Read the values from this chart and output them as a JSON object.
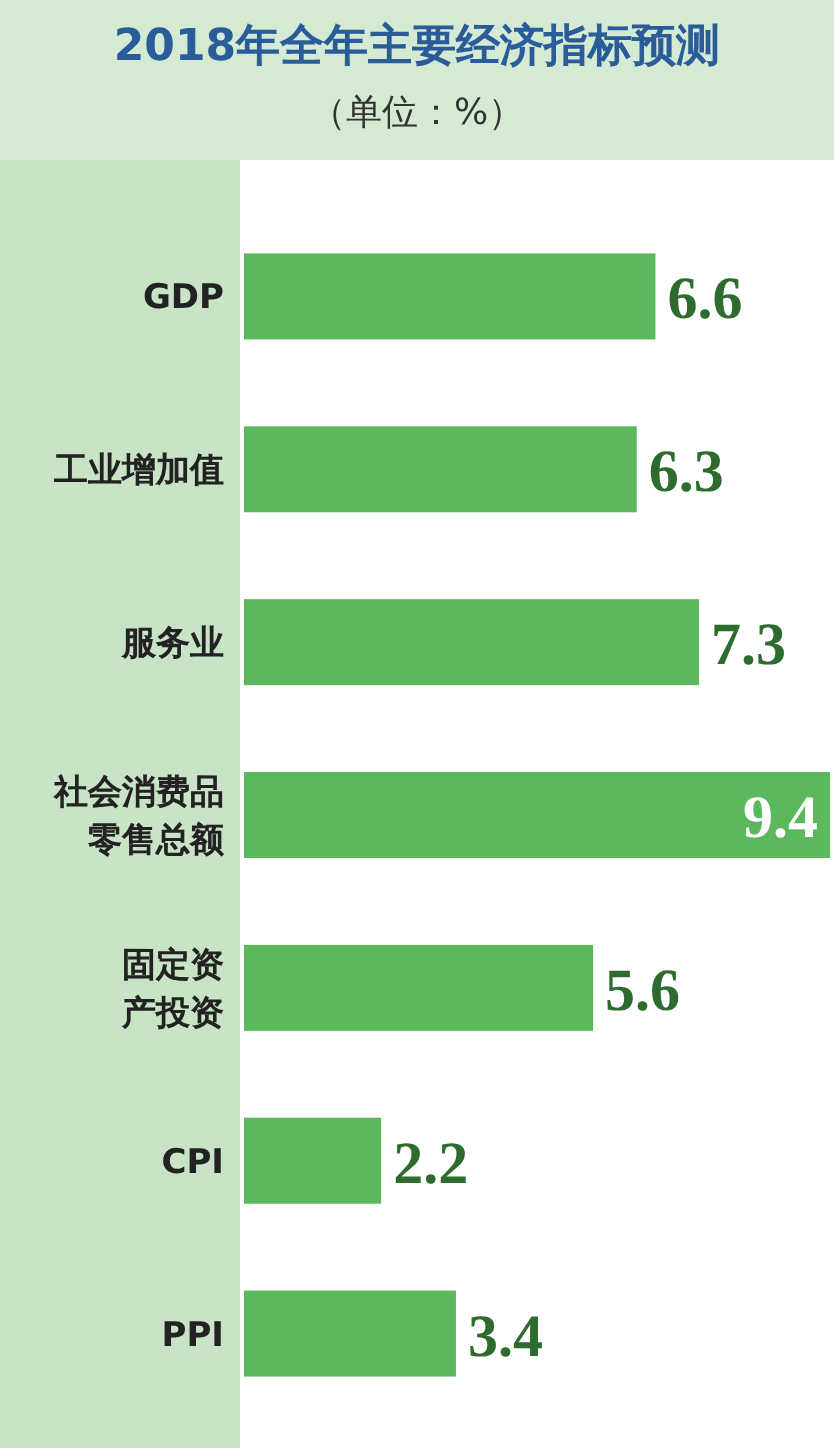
{
  "chart_data": {
    "type": "bar",
    "orientation": "horizontal",
    "title": "2018年全年主要经济指标预测",
    "subtitle": "（单位：%）",
    "categories": [
      "GDP",
      "工业增加值",
      "服务业",
      "社会消费品零售总额",
      "固定资产投资",
      "CPI",
      "PPI"
    ],
    "values": [
      6.6,
      6.3,
      7.3,
      9.4,
      5.6,
      2.2,
      3.4
    ],
    "color": "#5cb85c",
    "data_labels": true
  }
}
